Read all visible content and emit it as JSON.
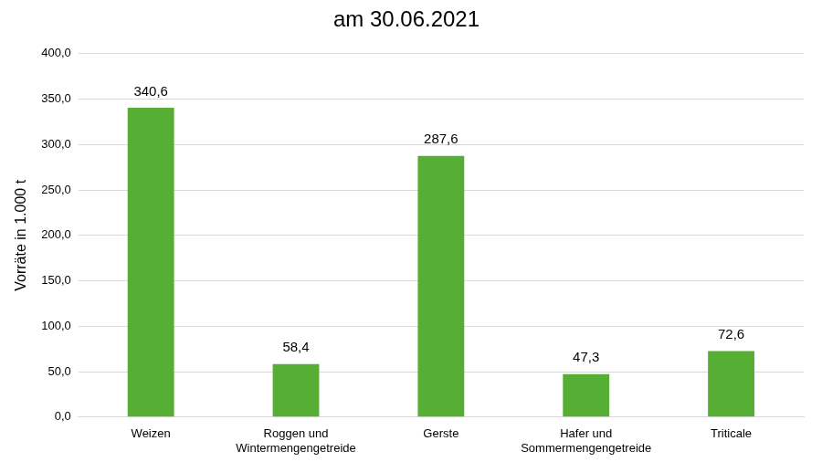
{
  "chart_data": {
    "type": "bar",
    "title": "am 30.06.2021",
    "y_label": "Vorräte in 1.000 t",
    "categories": [
      "Weizen",
      "Roggen und\nWintermengengetreide",
      "Gerste",
      "Hafer und\nSommermengengetreide",
      "Triticale"
    ],
    "values": [
      340.6,
      58.4,
      287.6,
      47.3,
      72.6
    ],
    "value_labels": [
      "340,6",
      "58,4",
      "287,6",
      "47,3",
      "72,6"
    ],
    "data_labels": true,
    "color": "#56ae35",
    "ylim": [
      0,
      400
    ],
    "yticks": [
      {
        "value": 0,
        "label": "0,0"
      },
      {
        "value": 50,
        "label": "50,0"
      },
      {
        "value": 100,
        "label": "100,0"
      },
      {
        "value": 150,
        "label": "150,0"
      },
      {
        "value": 200,
        "label": "200,0"
      },
      {
        "value": 250,
        "label": "250,0"
      },
      {
        "value": 300,
        "label": "300,0"
      },
      {
        "value": 350,
        "label": "350,0"
      },
      {
        "value": 400,
        "label": "400,0"
      }
    ],
    "grid": true
  }
}
